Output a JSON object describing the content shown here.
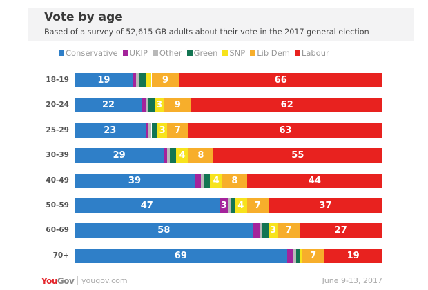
{
  "chart_data": {
    "type": "bar",
    "orientation": "horizontal-stacked-100",
    "title": "Vote by age",
    "subtitle": "Based of a survey of 52,615 GB adults about their vote in the 2017 general election",
    "legend_position": "top",
    "categories": [
      "18-19",
      "20-24",
      "25-29",
      "30-39",
      "40-49",
      "50-59",
      "60-69",
      "70+"
    ],
    "series": [
      {
        "name": "Conservative",
        "color": "#2f7fc8",
        "values": [
          19,
          22,
          23,
          29,
          39,
          47,
          58,
          69
        ]
      },
      {
        "name": "UKIP",
        "color": "#a4239b",
        "values": [
          1,
          1,
          1,
          1,
          2,
          3,
          2,
          2
        ]
      },
      {
        "name": "Other",
        "color": "#b9b9b9",
        "values": [
          1,
          1,
          1,
          1,
          1,
          1,
          1,
          1
        ]
      },
      {
        "name": "Green",
        "color": "#137552",
        "values": [
          2,
          2,
          2,
          2,
          2,
          1,
          2,
          1
        ]
      },
      {
        "name": "SNP",
        "color": "#f7e31c",
        "values": [
          2,
          3,
          3,
          4,
          4,
          4,
          3,
          1
        ]
      },
      {
        "name": "Lib Dem",
        "color": "#f7ae2b",
        "values": [
          9,
          9,
          7,
          8,
          8,
          7,
          7,
          7
        ]
      },
      {
        "name": "Labour",
        "color": "#e8221f",
        "values": [
          66,
          62,
          63,
          55,
          44,
          37,
          27,
          19
        ]
      }
    ],
    "xlim": [
      0,
      100
    ],
    "grid": false
  },
  "footer": {
    "brand_you": "You",
    "brand_gov": "Gov",
    "url": "yougov.com",
    "date": "June 9-13, 2017"
  }
}
